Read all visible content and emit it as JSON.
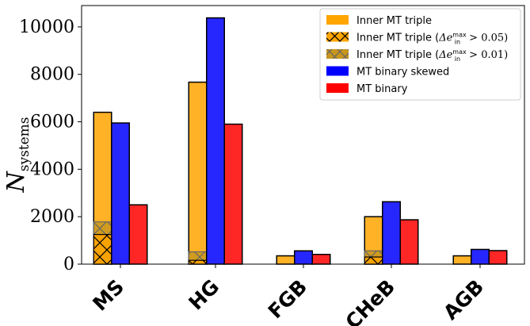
{
  "chart_data": {
    "type": "bar",
    "title": "",
    "xlabel": "",
    "ylabel": "N",
    "ylabel_subscript": "systems",
    "ylim": [
      0,
      10900
    ],
    "yticks": [
      0,
      2000,
      4000,
      6000,
      8000,
      10000
    ],
    "ytick_labels": [
      "0",
      "2000",
      "4000",
      "6000",
      "8000",
      "10000"
    ],
    "categories": [
      "MS",
      "HG",
      "FGB",
      "CHeB",
      "AGB"
    ],
    "series": [
      {
        "name": "Inner MT triple",
        "values": [
          6400,
          7670,
          350,
          2000,
          350
        ],
        "color": "#ffa500"
      },
      {
        "name": "Inner MT triple (Δe_in^max > 0.05)",
        "values": [
          1250,
          160,
          0,
          300,
          0
        ],
        "color": "#ffa500",
        "hatch": "x"
      },
      {
        "name": "Inner MT triple (Δe_in^max > 0.01)",
        "values": [
          1780,
          520,
          0,
          560,
          0
        ],
        "color": "#c8961e",
        "hatch": "x"
      },
      {
        "name": "MT binary skewed",
        "values": [
          5950,
          10380,
          560,
          2630,
          620
        ],
        "color": "#0000ff"
      },
      {
        "name": "MT binary",
        "values": [
          2500,
          5900,
          410,
          1870,
          570
        ],
        "color": "#ff0000"
      }
    ],
    "legend": {
      "position": "top-right",
      "entries": [
        {
          "plain": "Inner MT triple",
          "math": ""
        },
        {
          "plain": "Inner MT triple (",
          "math": "Δe",
          "sub": "in",
          "sup": "max",
          "tail": " > 0.05)"
        },
        {
          "plain": "Inner MT triple (",
          "math": "Δe",
          "sub": "in",
          "sup": "max",
          "tail": " > 0.01)"
        },
        {
          "plain": "MT binary skewed",
          "math": ""
        },
        {
          "plain": "MT binary",
          "math": ""
        }
      ]
    }
  }
}
